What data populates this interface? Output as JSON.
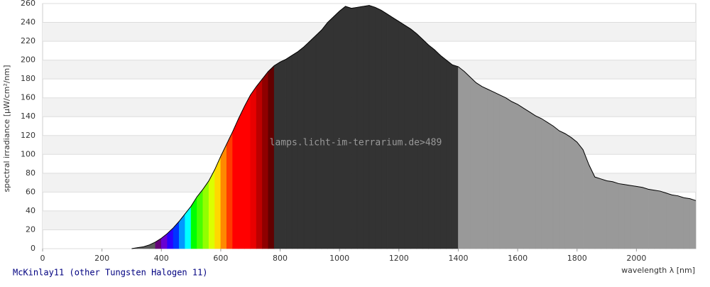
{
  "chart_data": {
    "type": "area",
    "watermark": "lamps.licht-im-terrarium.de>489",
    "ylabel": "spectral irradiance [µW/cm²/nm]",
    "xlabel": "wavelength λ [nm]",
    "xlim": [
      0,
      2200
    ],
    "xticks": [
      0,
      200,
      400,
      600,
      800,
      1000,
      1200,
      1400,
      1600,
      1800,
      2000
    ],
    "ylim": [
      0,
      260
    ],
    "yticks": [
      0,
      20,
      40,
      60,
      80,
      100,
      120,
      140,
      160,
      180,
      200,
      220,
      240,
      260
    ],
    "grid": true,
    "bands": [
      {
        "from": 300,
        "to": 380,
        "color": "#5a5a5a"
      },
      {
        "from": 380,
        "to": 780,
        "color": "spectrum"
      },
      {
        "from": 780,
        "to": 1400,
        "color": "#333333"
      },
      {
        "from": 1400,
        "to": 2200,
        "color": "#999999"
      }
    ],
    "x": [
      300,
      320,
      340,
      360,
      380,
      400,
      420,
      440,
      460,
      480,
      500,
      520,
      540,
      560,
      580,
      600,
      620,
      640,
      660,
      680,
      700,
      720,
      740,
      760,
      780,
      800,
      820,
      840,
      860,
      880,
      900,
      920,
      940,
      960,
      980,
      1000,
      1020,
      1040,
      1060,
      1080,
      1100,
      1120,
      1140,
      1160,
      1180,
      1200,
      1220,
      1240,
      1260,
      1280,
      1300,
      1320,
      1340,
      1360,
      1380,
      1400,
      1420,
      1440,
      1460,
      1480,
      1500,
      1520,
      1540,
      1560,
      1580,
      1600,
      1620,
      1640,
      1660,
      1680,
      1700,
      1720,
      1740,
      1760,
      1780,
      1800,
      1820,
      1840,
      1860,
      1880,
      1900,
      1920,
      1940,
      1960,
      1980,
      2000,
      2020,
      2040,
      2060,
      2080,
      2100,
      2120,
      2140,
      2160,
      2180,
      2200
    ],
    "series": [
      {
        "name": "McKinlay11 (other Tungsten Halogen 11)",
        "color": "#000000",
        "values": [
          0,
          1,
          2,
          4,
          7,
          11,
          16,
          22,
          29,
          37,
          45,
          55,
          63,
          72,
          84,
          98,
          111,
          124,
          138,
          151,
          163,
          172,
          180,
          188,
          194,
          198,
          201,
          205,
          209,
          214,
          220,
          226,
          232,
          240,
          246,
          252,
          257,
          255,
          256,
          257,
          258,
          256,
          253,
          249,
          245,
          241,
          237,
          233,
          228,
          222,
          216,
          211,
          205,
          200,
          195,
          193,
          188,
          182,
          176,
          172,
          169,
          166,
          163,
          160,
          156,
          153,
          149,
          145,
          141,
          138,
          134,
          130,
          125,
          122,
          118,
          113,
          105,
          89,
          76,
          74,
          72,
          71,
          69,
          68,
          67,
          66,
          65,
          63,
          62,
          61,
          59,
          57,
          56,
          54,
          53,
          51
        ]
      }
    ]
  }
}
